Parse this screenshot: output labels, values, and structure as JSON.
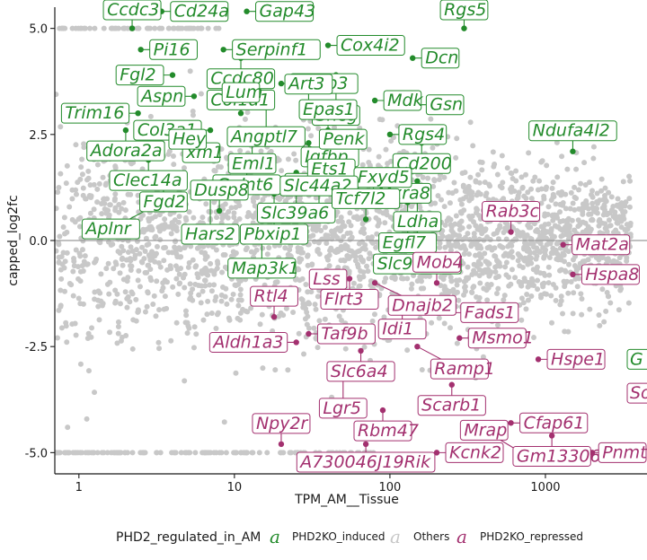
{
  "chart_data": {
    "type": "scatter",
    "xlabel": "TPM_AM__Tissue",
    "ylabel": "capped_log2fc",
    "x_scale": "log10",
    "xlim": [
      0.7,
      4500
    ],
    "ylim": [
      -5.5,
      5.5
    ],
    "x_ticks": [
      {
        "value": 1,
        "label": "1"
      },
      {
        "value": 10,
        "label": "10"
      },
      {
        "value": 100,
        "label": "100"
      },
      {
        "value": 1000,
        "label": "1000"
      }
    ],
    "y_ticks": [
      {
        "value": 5.0,
        "label": "5.0"
      },
      {
        "value": 2.5,
        "label": "2.5"
      },
      {
        "value": 0.0,
        "label": "0.0"
      },
      {
        "value": -2.5,
        "label": "-2.5"
      },
      {
        "value": -5.0,
        "label": "-5.0"
      }
    ],
    "hline": 0,
    "legend": {
      "title": "PHD2_regulated_in_AM",
      "position": "bottom",
      "entries": [
        {
          "key": "a",
          "label": "PHD2KO_induced",
          "color": "#238b2b"
        },
        {
          "key": "a",
          "label": "Others",
          "color": "#c8c8c8"
        },
        {
          "key": "a",
          "label": "PHD2KO_repressed",
          "color": "#a3306f"
        }
      ]
    },
    "colors": {
      "induced": "#238b2b",
      "others": "#c8c8c8",
      "repressed": "#a3306f",
      "zero_line": "#9a9a9a"
    },
    "series": [
      {
        "name": "PHD2KO_induced",
        "labeled_points": [
          {
            "gene": "Ccdc3",
            "x": 2.2,
            "y": 5.0
          },
          {
            "gene": "Cd24a",
            "x": 3.4,
            "y": 5.4
          },
          {
            "gene": "Gap43",
            "x": 12.0,
            "y": 5.4
          },
          {
            "gene": "Rgs5",
            "x": 300,
            "y": 5.0
          },
          {
            "gene": "Pi16",
            "x": 2.5,
            "y": 4.5
          },
          {
            "gene": "Serpinf1",
            "x": 8.5,
            "y": 4.5
          },
          {
            "gene": "Ccdc80",
            "x": 11.0,
            "y": 4.3
          },
          {
            "gene": "Cox4i2",
            "x": 40,
            "y": 4.6
          },
          {
            "gene": "Dcn",
            "x": 140,
            "y": 4.3
          },
          {
            "gene": "Fgl2",
            "x": 4.0,
            "y": 3.9
          },
          {
            "gene": "Col1a1",
            "x": 11.0,
            "y": 3.8
          },
          {
            "gene": "Igfbp3",
            "x": 20,
            "y": 3.7
          },
          {
            "gene": "Sncg",
            "x": 45,
            "y": 3.9
          },
          {
            "gene": "Aspn",
            "x": 5.5,
            "y": 3.4
          },
          {
            "gene": "Angptl7",
            "x": 16,
            "y": 3.4
          },
          {
            "gene": "Mdk",
            "x": 80,
            "y": 3.3
          },
          {
            "gene": "Art3",
            "x": 30,
            "y": 3.2
          },
          {
            "gene": "Gsn",
            "x": 150,
            "y": 3.2
          },
          {
            "gene": "Trim16",
            "x": 2.4,
            "y": 3.0
          },
          {
            "gene": "Lum",
            "x": 11.0,
            "y": 3.0
          },
          {
            "gene": "Col3a1",
            "x": 7.0,
            "y": 2.6
          },
          {
            "gene": "Igfbp",
            "x": 22,
            "y": 2.5
          },
          {
            "gene": "Epas1",
            "x": 40,
            "y": 2.6
          },
          {
            "gene": "Rgs4",
            "x": 100,
            "y": 2.5
          },
          {
            "gene": "Adora2a",
            "x": 2.0,
            "y": 2.6
          },
          {
            "gene": "xm1",
            "x": 3.8,
            "y": 2.6
          },
          {
            "gene": "Eml1",
            "x": 13.0,
            "y": 2.3
          },
          {
            "gene": "Cd34",
            "x": 30,
            "y": 2.3
          },
          {
            "gene": "Cd200",
            "x": 160,
            "y": 2.3
          },
          {
            "gene": "Penk",
            "x": 50,
            "y": 1.9
          },
          {
            "gene": "Ndufa4l2",
            "x": 1500,
            "y": 2.1
          },
          {
            "gene": "Clec14a",
            "x": 2.8,
            "y": 1.9
          },
          {
            "gene": "Hey",
            "x": 5.0,
            "y": 1.9
          },
          {
            "gene": "Galnt6",
            "x": 12.0,
            "y": 1.8
          },
          {
            "gene": "Slc39a6",
            "x": 25,
            "y": 1.6
          },
          {
            "gene": "Mxra8",
            "x": 120,
            "y": 1.6
          },
          {
            "gene": "Fgd2",
            "x": 3.5,
            "y": 1.4
          },
          {
            "gene": "Ldha",
            "x": 150,
            "y": 1.4
          },
          {
            "gene": "Hars2",
            "x": 7.0,
            "y": 1.1
          },
          {
            "gene": "Pbxip1",
            "x": 18,
            "y": 1.1
          },
          {
            "gene": "Ets1",
            "x": 42,
            "y": 1.2
          },
          {
            "gene": "Fxyd5",
            "x": 90,
            "y": 1.0
          },
          {
            "gene": "Egfl7",
            "x": 130,
            "y": 0.9
          },
          {
            "gene": "Aplnr",
            "x": 3.0,
            "y": 0.8
          },
          {
            "gene": "Dusp8",
            "x": 8.0,
            "y": 0.7
          },
          {
            "gene": "Slc44a2",
            "x": 35,
            "y": 0.8
          },
          {
            "gene": "Tcf7l2",
            "x": 70,
            "y": 0.5
          },
          {
            "gene": "Slc9a3r2",
            "x": 150,
            "y": 0.4
          },
          {
            "gene": "Map3k1",
            "x": 15,
            "y": 0.3
          }
        ]
      },
      {
        "name": "PHD2KO_repressed",
        "labeled_points": [
          {
            "gene": "Rab3c",
            "x": 600,
            "y": 0.2
          },
          {
            "gene": "Mat2a",
            "x": 1300,
            "y": -0.1
          },
          {
            "gene": "Flrt3",
            "x": 55,
            "y": -0.9
          },
          {
            "gene": "Dnajb2",
            "x": 80,
            "y": -1.0
          },
          {
            "gene": "Mob4",
            "x": 200,
            "y": -1.0
          },
          {
            "gene": "Hspa8",
            "x": 1500,
            "y": -0.8
          },
          {
            "gene": "Rtl4",
            "x": 18,
            "y": -1.8
          },
          {
            "gene": "Lss",
            "x": 40,
            "y": -1.4
          },
          {
            "gene": "Idi1",
            "x": 120,
            "y": -1.6
          },
          {
            "gene": "Fads1",
            "x": 250,
            "y": -1.7
          },
          {
            "gene": "Taf9b",
            "x": 30,
            "y": -2.2
          },
          {
            "gene": "Msmo1",
            "x": 280,
            "y": -2.3
          },
          {
            "gene": "Aldh1a3",
            "x": 25,
            "y": -2.4
          },
          {
            "gene": "Slc6a4",
            "x": 65,
            "y": -2.6
          },
          {
            "gene": "Ramp1",
            "x": 150,
            "y": -2.5
          },
          {
            "gene": "Hspe1",
            "x": 900,
            "y": -2.8
          },
          {
            "gene": "Lgr5",
            "x": 50,
            "y": -3.0
          },
          {
            "gene": "Scarb1",
            "x": 250,
            "y": -3.4
          },
          {
            "gene": "Rbm47",
            "x": 90,
            "y": -4.0
          },
          {
            "gene": "Cfap61",
            "x": 600,
            "y": -4.3
          },
          {
            "gene": "Gm13306",
            "x": 1100,
            "y": -4.6
          },
          {
            "gene": "Npy2r",
            "x": 20,
            "y": -4.8
          },
          {
            "gene": "A730046J19Rik",
            "x": 70,
            "y": -4.8
          },
          {
            "gene": "Kcnk2",
            "x": 200,
            "y": -5.0
          },
          {
            "gene": "Mrap",
            "x": 700,
            "y": -5.0
          },
          {
            "gene": "Pnmt",
            "x": 2000,
            "y": -5.0
          }
        ]
      }
    ]
  },
  "edge_labels": [
    "G",
    "So"
  ]
}
